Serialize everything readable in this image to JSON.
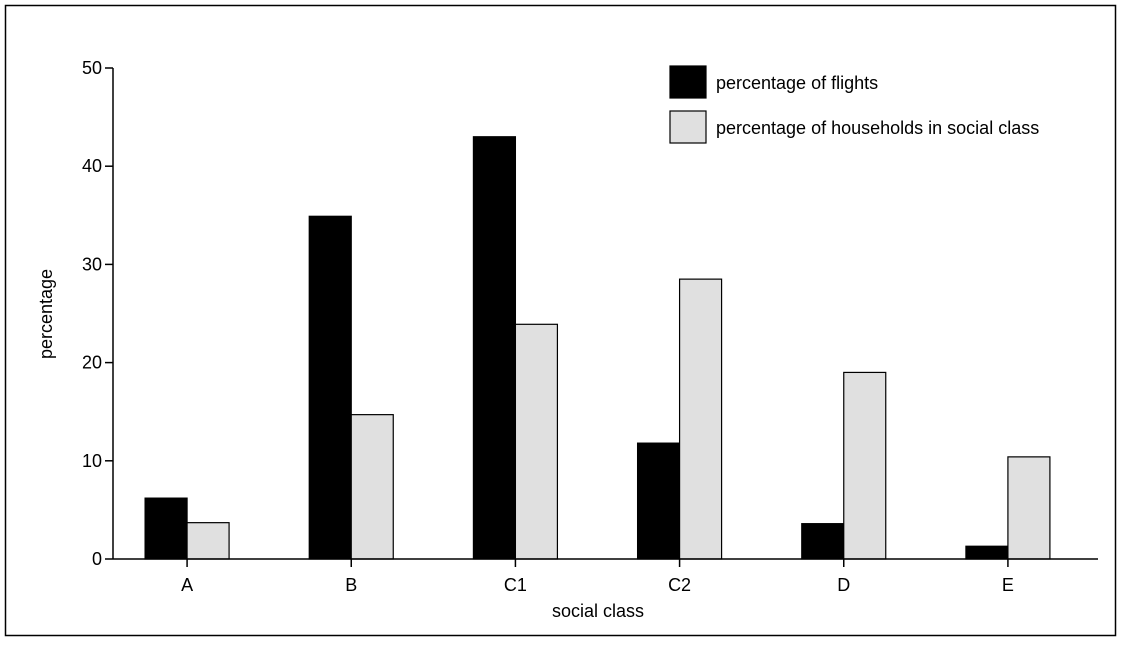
{
  "chart_data": {
    "type": "bar",
    "categories": [
      "A",
      "B",
      "C1",
      "C2",
      "D",
      "E"
    ],
    "series": [
      {
        "name": "percentage of flights",
        "values": [
          6.2,
          34.9,
          43.0,
          11.8,
          3.6,
          1.3
        ],
        "color": "#000000"
      },
      {
        "name": "percentage of households in social class",
        "values": [
          3.7,
          14.7,
          23.9,
          28.5,
          19.0,
          10.4
        ],
        "color": "#e0e0e0"
      }
    ],
    "title": "",
    "xlabel": "social class",
    "ylabel": "percentage",
    "ylim": [
      0,
      50
    ],
    "yticks": [
      "0",
      "10",
      "20",
      "30",
      "40",
      "50"
    ],
    "ytick_values": [
      0,
      10,
      20,
      30,
      40,
      50
    ],
    "grid": false,
    "legend_position": "top-right"
  }
}
